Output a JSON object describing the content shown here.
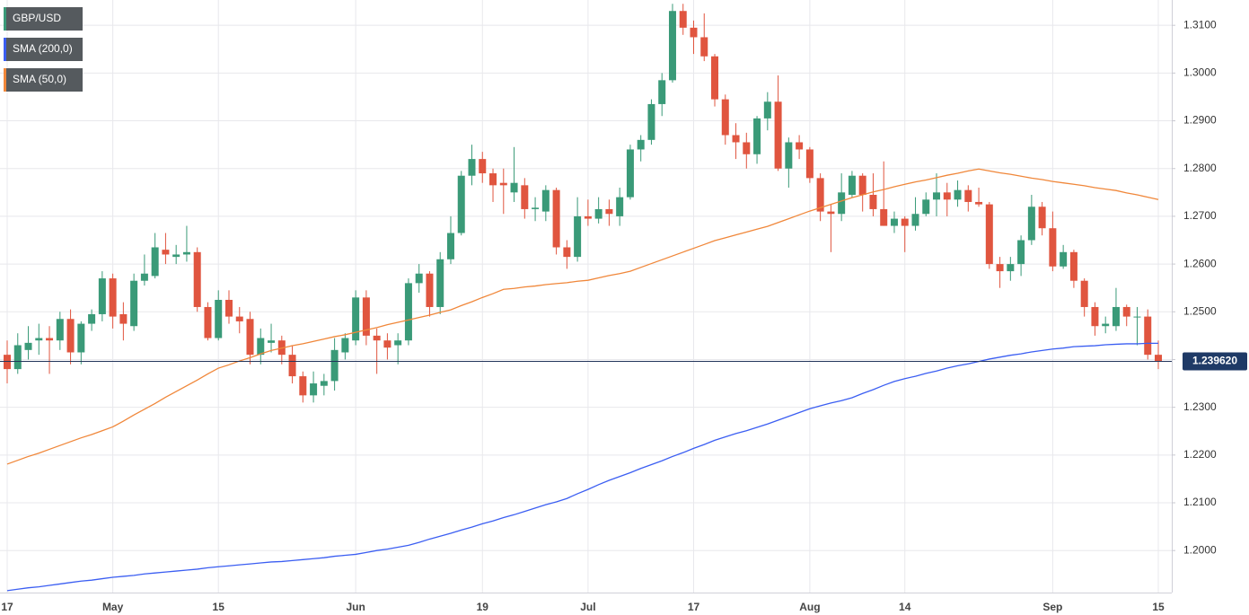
{
  "chart_data": {
    "type": "candlestick",
    "categories": [
      "17",
      null,
      null,
      null,
      null,
      null,
      null,
      null,
      null,
      null,
      "May",
      null,
      null,
      null,
      null,
      null,
      null,
      null,
      null,
      null,
      "15",
      null,
      null,
      null,
      null,
      null,
      null,
      null,
      null,
      null,
      null,
      null,
      null,
      "Jun",
      null,
      null,
      null,
      null,
      null,
      null,
      null,
      null,
      null,
      null,
      null,
      "19",
      null,
      null,
      null,
      null,
      null,
      null,
      null,
      null,
      null,
      "Jul",
      null,
      null,
      null,
      null,
      null,
      null,
      null,
      null,
      null,
      "17",
      null,
      null,
      null,
      null,
      null,
      null,
      null,
      null,
      null,
      null,
      "Aug",
      null,
      null,
      null,
      null,
      null,
      null,
      null,
      null,
      "14",
      null,
      null,
      null,
      null,
      null,
      null,
      null,
      null,
      null,
      null,
      null,
      null,
      null,
      "Sep",
      null,
      null,
      null,
      null,
      null,
      null,
      null,
      null,
      null,
      "15"
    ],
    "series": [
      {
        "name": "GBP/USD",
        "up_color": "#3a9a78",
        "down_color": "#e0553f",
        "open": [
          1.241,
          1.238,
          1.242,
          1.244,
          1.2445,
          1.244,
          1.2485,
          1.2415,
          1.2475,
          1.2495,
          1.257,
          1.2495,
          1.247,
          1.2565,
          1.2575,
          1.263,
          1.2615,
          1.262,
          1.2625,
          1.251,
          1.2445,
          1.2525,
          1.249,
          1.2485,
          1.241,
          1.2435,
          1.244,
          1.241,
          1.2365,
          1.2325,
          1.2345,
          1.2355,
          1.2415,
          1.244,
          1.253,
          1.245,
          1.244,
          1.243,
          1.244,
          1.256,
          1.258,
          1.251,
          1.261,
          1.2665,
          1.2785,
          1.282,
          1.279,
          1.277,
          1.275,
          1.2765,
          1.2715,
          1.271,
          1.2755,
          1.2635,
          1.2615,
          1.27,
          1.2695,
          1.2715,
          1.27,
          1.274,
          1.284,
          1.286,
          1.2935,
          1.2985,
          1.313,
          1.3095,
          1.3075,
          1.3035,
          1.2945,
          1.287,
          1.2855,
          1.283,
          1.2905,
          1.294,
          1.28,
          1.2855,
          1.284,
          1.278,
          1.271,
          1.2705,
          1.2745,
          1.2785,
          1.2745,
          1.2715,
          1.268,
          1.2695,
          1.268,
          1.2705,
          1.2735,
          1.275,
          1.2735,
          1.2755,
          1.273,
          1.2725,
          1.26,
          1.2585,
          1.26,
          1.265,
          1.272,
          1.2675,
          1.2595,
          1.2625,
          1.2565,
          1.251,
          1.247,
          1.247,
          1.251,
          1.249,
          1.249,
          1.241
        ],
        "high": [
          1.244,
          1.2455,
          1.247,
          1.2475,
          1.247,
          1.25,
          1.2505,
          1.248,
          1.2505,
          1.2585,
          1.258,
          1.252,
          1.258,
          1.262,
          1.2665,
          1.2665,
          1.264,
          1.268,
          1.2635,
          1.252,
          1.2545,
          1.2545,
          1.251,
          1.25,
          1.2465,
          1.2475,
          1.245,
          1.243,
          1.2375,
          1.2375,
          1.237,
          1.2445,
          1.2455,
          1.2545,
          1.2545,
          1.2465,
          1.2455,
          1.2455,
          1.257,
          1.26,
          1.2585,
          1.2625,
          1.27,
          1.2795,
          1.285,
          1.2835,
          1.28,
          1.28,
          1.2845,
          1.278,
          1.274,
          1.2765,
          1.276,
          1.265,
          1.274,
          1.2735,
          1.274,
          1.2735,
          1.276,
          1.285,
          1.287,
          1.2945,
          1.3,
          1.3145,
          1.3145,
          1.311,
          1.3125,
          1.304,
          1.2955,
          1.2895,
          1.2875,
          1.291,
          1.296,
          1.2995,
          1.2865,
          1.287,
          1.2845,
          1.279,
          1.2725,
          1.279,
          1.2795,
          1.279,
          1.279,
          1.2815,
          1.271,
          1.27,
          1.274,
          1.275,
          1.279,
          1.277,
          1.2775,
          1.2765,
          1.276,
          1.273,
          1.2615,
          1.2615,
          1.266,
          1.2745,
          1.273,
          1.271,
          1.264,
          1.263,
          1.257,
          1.252,
          1.249,
          1.255,
          1.2515,
          1.251,
          1.2505,
          1.244
        ],
        "low": [
          1.235,
          1.237,
          1.24,
          1.241,
          1.237,
          1.242,
          1.239,
          1.239,
          1.246,
          1.248,
          1.2465,
          1.244,
          1.246,
          1.2555,
          1.257,
          1.26,
          1.26,
          1.2605,
          1.25,
          1.244,
          1.244,
          1.2475,
          1.2455,
          1.239,
          1.239,
          1.2415,
          1.239,
          1.235,
          1.231,
          1.231,
          1.2325,
          1.2335,
          1.24,
          1.243,
          1.243,
          1.237,
          1.24,
          1.239,
          1.243,
          1.254,
          1.249,
          1.2495,
          1.26,
          1.266,
          1.2765,
          1.277,
          1.273,
          1.2705,
          1.273,
          1.2695,
          1.269,
          1.269,
          1.262,
          1.259,
          1.2605,
          1.268,
          1.2685,
          1.268,
          1.268,
          1.2735,
          1.2815,
          1.285,
          1.291,
          1.298,
          1.308,
          1.304,
          1.3025,
          1.293,
          1.285,
          1.282,
          1.28,
          1.281,
          1.288,
          1.2795,
          1.276,
          1.282,
          1.277,
          1.269,
          1.2625,
          1.269,
          1.274,
          1.271,
          1.27,
          1.268,
          1.2665,
          1.2625,
          1.267,
          1.27,
          1.27,
          1.27,
          1.272,
          1.271,
          1.272,
          1.259,
          1.255,
          1.2565,
          1.2575,
          1.264,
          1.266,
          1.2585,
          1.259,
          1.255,
          1.249,
          1.245,
          1.2455,
          1.246,
          1.247,
          1.243,
          1.24,
          1.238
        ],
        "close": [
          1.238,
          1.243,
          1.2435,
          1.2445,
          1.244,
          1.2485,
          1.2415,
          1.2475,
          1.2495,
          1.257,
          1.249,
          1.2475,
          1.2565,
          1.258,
          1.2635,
          1.262,
          1.262,
          1.2625,
          1.251,
          1.2445,
          1.2525,
          1.249,
          1.248,
          1.241,
          1.2445,
          1.244,
          1.241,
          1.2365,
          1.2325,
          1.235,
          1.2355,
          1.242,
          1.2445,
          1.253,
          1.245,
          1.244,
          1.2425,
          1.244,
          1.256,
          1.258,
          1.251,
          1.261,
          1.2665,
          1.2785,
          1.282,
          1.279,
          1.2765,
          1.2765,
          1.277,
          1.2715,
          1.2718,
          1.2755,
          1.2635,
          1.2615,
          1.27,
          1.2695,
          1.2715,
          1.2705,
          1.274,
          1.284,
          1.286,
          1.2935,
          1.2985,
          1.313,
          1.3095,
          1.3075,
          1.3035,
          1.2945,
          1.287,
          1.2855,
          1.283,
          1.2905,
          1.294,
          1.28,
          1.2855,
          1.284,
          1.278,
          1.271,
          1.2705,
          1.275,
          1.2785,
          1.2745,
          1.2715,
          1.268,
          1.2695,
          1.268,
          1.2705,
          1.2735,
          1.275,
          1.2735,
          1.2755,
          1.273,
          1.2725,
          1.26,
          1.2585,
          1.26,
          1.265,
          1.272,
          1.2675,
          1.2595,
          1.2625,
          1.2565,
          1.251,
          1.247,
          1.2475,
          1.251,
          1.249,
          1.249,
          1.241,
          1.2396
        ]
      },
      {
        "name": "SMA (200,0)",
        "color": "#3b5ef2",
        "values": [
          1.1916,
          1.1919,
          1.1922,
          1.1924,
          1.1927,
          1.193,
          1.1933,
          1.1936,
          1.1938,
          1.1941,
          1.1944,
          1.1946,
          1.1948,
          1.1951,
          1.1953,
          1.1955,
          1.1957,
          1.1959,
          1.1961,
          1.1964,
          1.1966,
          1.1968,
          1.197,
          1.1972,
          1.1974,
          1.1976,
          1.1977,
          1.1979,
          1.1981,
          1.1983,
          1.1985,
          1.1988,
          1.199,
          1.1992,
          1.1996,
          1.2,
          1.2003,
          1.2007,
          1.2011,
          1.2017,
          1.2024,
          1.203,
          1.2036,
          1.2043,
          1.2049,
          1.2056,
          1.2062,
          1.2069,
          1.2075,
          1.2082,
          1.2089,
          1.2096,
          1.2102,
          1.2109,
          1.2119,
          1.2128,
          1.2138,
          1.2147,
          1.2155,
          1.2163,
          1.2172,
          1.218,
          1.2188,
          1.2197,
          1.2205,
          1.2214,
          1.2222,
          1.2231,
          1.2238,
          1.2245,
          1.2251,
          1.2258,
          1.2265,
          1.2273,
          1.2281,
          1.2289,
          1.2297,
          1.2303,
          1.2309,
          1.2314,
          1.232,
          1.2329,
          1.2337,
          1.2346,
          1.2354,
          1.236,
          1.2365,
          1.2371,
          1.2376,
          1.2382,
          1.2387,
          1.2391,
          1.2396,
          1.2401,
          1.2405,
          1.2409,
          1.2412,
          1.2416,
          1.2419,
          1.2422,
          1.2424,
          1.2427,
          1.2428,
          1.2429,
          1.2431,
          1.2432,
          1.2433,
          1.2433,
          1.2434,
          1.2434
        ]
      },
      {
        "name": "SMA (50,0)",
        "color": "#f0873a",
        "values": [
          1.2181,
          1.2189,
          1.2197,
          1.2204,
          1.2212,
          1.222,
          1.2228,
          1.2236,
          1.2243,
          1.2251,
          1.2259,
          1.2271,
          1.2284,
          1.2296,
          1.2308,
          1.2321,
          1.2333,
          1.2345,
          1.2357,
          1.237,
          1.2382,
          1.2389,
          1.2397,
          1.2404,
          1.2412,
          1.2419,
          1.2424,
          1.2429,
          1.2433,
          1.2438,
          1.2443,
          1.2448,
          1.2452,
          1.2457,
          1.2462,
          1.2467,
          1.2473,
          1.2478,
          1.2483,
          1.2488,
          1.2493,
          1.2499,
          1.2504,
          1.2513,
          1.2521,
          1.253,
          1.2538,
          1.2547,
          1.2549,
          1.2552,
          1.2554,
          1.2557,
          1.2559,
          1.2561,
          1.2564,
          1.2566,
          1.2571,
          1.2576,
          1.258,
          1.2585,
          1.2593,
          1.2601,
          1.2609,
          1.2617,
          1.2625,
          1.2633,
          1.2641,
          1.2649,
          1.2655,
          1.2661,
          1.2667,
          1.2673,
          1.2679,
          1.2687,
          1.2695,
          1.2703,
          1.2711,
          1.2718,
          1.2725,
          1.2732,
          1.2739,
          1.2745,
          1.2751,
          1.2756,
          1.2762,
          1.2767,
          1.2772,
          1.2776,
          1.2781,
          1.2786,
          1.279,
          1.2795,
          1.2799,
          1.2795,
          1.2791,
          1.2788,
          1.2784,
          1.278,
          1.2777,
          1.2773,
          1.277,
          1.2767,
          1.2764,
          1.276,
          1.2757,
          1.2754,
          1.2749,
          1.2745,
          1.274,
          1.2735
        ]
      }
    ],
    "last_price": {
      "value": 1.23962,
      "label": "1.239620"
    },
    "ylim": [
      1.1912,
      1.3153
    ],
    "yticks": [
      {
        "value": 1.2,
        "label": "1.2000"
      },
      {
        "value": 1.21,
        "label": "1.2100"
      },
      {
        "value": 1.22,
        "label": "1.2200"
      },
      {
        "value": 1.23,
        "label": "1.2300"
      },
      {
        "value": 1.24,
        "label": "1.2400"
      },
      {
        "value": 1.25,
        "label": "1.2500"
      },
      {
        "value": 1.26,
        "label": "1.2600"
      },
      {
        "value": 1.27,
        "label": "1.2700"
      },
      {
        "value": 1.28,
        "label": "1.2800"
      },
      {
        "value": 1.29,
        "label": "1.2900"
      },
      {
        "value": 1.3,
        "label": "1.3000"
      },
      {
        "value": 1.31,
        "label": "1.3100"
      }
    ],
    "grid": true,
    "legend": "top-left"
  }
}
